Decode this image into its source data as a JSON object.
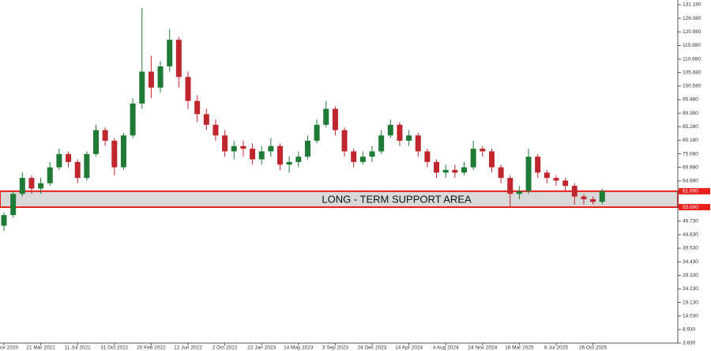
{
  "chart_data": {
    "type": "candlestick",
    "categories": [
      "ov 2020",
      null,
      null,
      null,
      "21 Mar 2021",
      null,
      null,
      null,
      "11 Jul 2021",
      null,
      null,
      null,
      "31 Oct 2021",
      null,
      null,
      null,
      "20 Feb 2022",
      null,
      null,
      null,
      "12 Jun 2022",
      null,
      null,
      null,
      "2 Oct 2022",
      null,
      null,
      null,
      "22 Jan 2023",
      null,
      null,
      null,
      "14 May 2023",
      null,
      null,
      null,
      "3 Sep 2023",
      null,
      null,
      null,
      "24 Dec 2023",
      null,
      null,
      null,
      "14 Apr 2024",
      null,
      null,
      null,
      "4 Aug 2024",
      null,
      null,
      null,
      "24 Nov 2024",
      null,
      null,
      null,
      "16 Mar 2025",
      null,
      null,
      null,
      "6 Jul 2025",
      null,
      null,
      null,
      "26 Oct 2025",
      null
    ],
    "open": [
      48,
      52,
      60,
      66,
      62,
      64,
      70,
      75,
      72,
      66,
      75,
      84,
      80,
      70,
      82,
      94,
      106,
      100,
      108,
      118,
      104,
      95,
      90,
      86,
      82,
      76,
      78,
      77,
      73,
      76,
      78,
      71,
      72,
      74,
      80,
      86,
      92,
      84,
      76,
      72,
      74,
      76,
      82,
      86,
      80,
      82,
      76,
      72,
      68,
      69,
      68,
      70,
      77,
      76,
      70,
      66,
      60,
      61,
      74,
      68,
      66,
      65,
      63,
      59,
      58,
      57
    ],
    "high": [
      53,
      61,
      68,
      67,
      66,
      72,
      77,
      76,
      73,
      76,
      86,
      85,
      81,
      83,
      96,
      130,
      112,
      110,
      122,
      119,
      106,
      97,
      92,
      88,
      84,
      80,
      80,
      79,
      78,
      81,
      79,
      74,
      76,
      82,
      88,
      95,
      93,
      85,
      77,
      76,
      78,
      84,
      88,
      87,
      84,
      83,
      77,
      73,
      71,
      71,
      72,
      80,
      78,
      77,
      71,
      67,
      63,
      77,
      75,
      69,
      67,
      66,
      64,
      60,
      59,
      62
    ],
    "low": [
      46,
      51,
      59,
      60,
      60,
      63,
      69,
      70,
      64,
      65,
      74,
      78,
      67,
      69,
      81,
      92,
      96,
      98,
      106,
      100,
      92,
      87,
      84,
      80,
      74,
      73,
      74,
      71,
      71,
      74,
      69,
      68,
      70,
      73,
      79,
      85,
      82,
      74,
      70,
      71,
      72,
      75,
      81,
      78,
      78,
      74,
      70,
      66,
      66,
      66,
      67,
      69,
      74,
      68,
      64,
      55,
      58,
      60,
      66,
      64,
      63,
      61,
      56,
      56,
      56,
      56
    ],
    "close": [
      52,
      60,
      66,
      62,
      64,
      70,
      75,
      72,
      66,
      75,
      84,
      80,
      70,
      82,
      94,
      106,
      100,
      108,
      118,
      104,
      95,
      90,
      86,
      82,
      76,
      78,
      77,
      73,
      76,
      78,
      71,
      72,
      74,
      80,
      86,
      92,
      84,
      76,
      72,
      74,
      76,
      82,
      86,
      80,
      82,
      76,
      72,
      68,
      69,
      68,
      70,
      77,
      76,
      70,
      66,
      60,
      61,
      74,
      68,
      66,
      65,
      63,
      59,
      58,
      57,
      61
    ],
    "up_color": "#1e7a34",
    "down_color": "#c0262d",
    "ylim": [
      3.83,
      132.97
    ],
    "yticks": [
      {
        "value": 131.18,
        "label": "131.180"
      },
      {
        "value": 126.08,
        "label": "126.080"
      },
      {
        "value": 120.98,
        "label": "120.980"
      },
      {
        "value": 115.88,
        "label": "115.880"
      },
      {
        "value": 110.68,
        "label": "110.680"
      },
      {
        "value": 105.68,
        "label": "105.680"
      },
      {
        "value": 100.58,
        "label": "100.580"
      },
      {
        "value": 95.48,
        "label": "95.480"
      },
      {
        "value": 90.38,
        "label": "90.380"
      },
      {
        "value": 85.28,
        "label": "85.280"
      },
      {
        "value": 80.18,
        "label": "80.180"
      },
      {
        "value": 75.08,
        "label": "75.080"
      },
      {
        "value": 69.98,
        "label": "69.980"
      },
      {
        "value": 64.88,
        "label": "64.880"
      },
      {
        "value": 49.73,
        "label": "49.730"
      },
      {
        "value": 44.63,
        "label": "44.630"
      },
      {
        "value": 39.53,
        "label": "39.530"
      },
      {
        "value": 34.43,
        "label": "34.430"
      },
      {
        "value": 29.33,
        "label": "29.330"
      },
      {
        "value": 24.23,
        "label": "24.230"
      },
      {
        "value": 19.13,
        "label": "19.130"
      },
      {
        "value": 14.03,
        "label": "14.030"
      },
      {
        "value": 8.93,
        "label": "8.930"
      },
      {
        "value": 3.83,
        "label": "3.830"
      }
    ],
    "grid": false,
    "support_zone": {
      "label": "LONG - TERM SUPPORT AREA",
      "top": {
        "value": 61,
        "label": "61.000"
      },
      "bottom": {
        "value": 55,
        "label": "55.000"
      },
      "color": "#e8201c"
    }
  }
}
